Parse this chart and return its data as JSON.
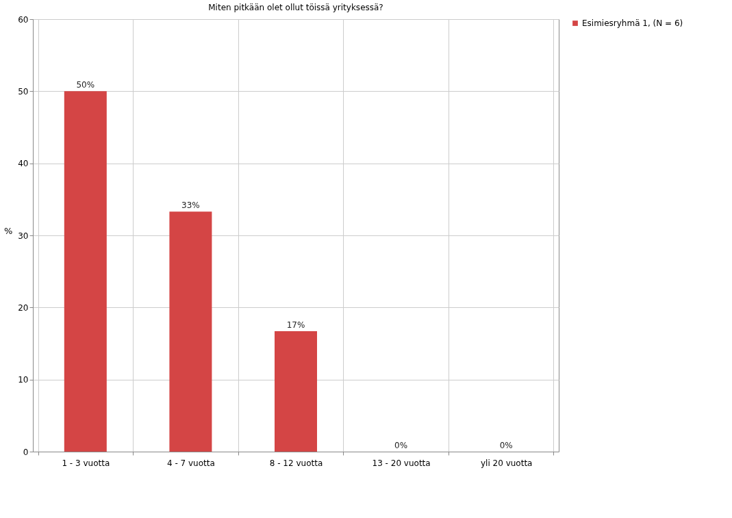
{
  "chart_data": {
    "type": "bar",
    "title": "Miten pitkään olet ollut töissä yrityksessä?",
    "ylabel": "%",
    "categories": [
      "1 - 3 vuotta",
      "4 - 7 vuotta",
      "8 - 12 vuotta",
      "13 - 20 vuotta",
      "yli 20 vuotta"
    ],
    "series": [
      {
        "name": "Esimiesryhmä 1, (N = 6)",
        "color": "#d44545",
        "values": [
          50,
          33.3,
          16.7,
          0,
          0
        ],
        "value_labels": [
          "50%",
          "33%",
          "17%",
          "0%",
          "0%"
        ]
      }
    ],
    "ylim": [
      0,
      60
    ],
    "yticks": [
      0,
      10,
      20,
      30,
      40,
      50,
      60
    ],
    "grid": true,
    "legend": "top right"
  }
}
